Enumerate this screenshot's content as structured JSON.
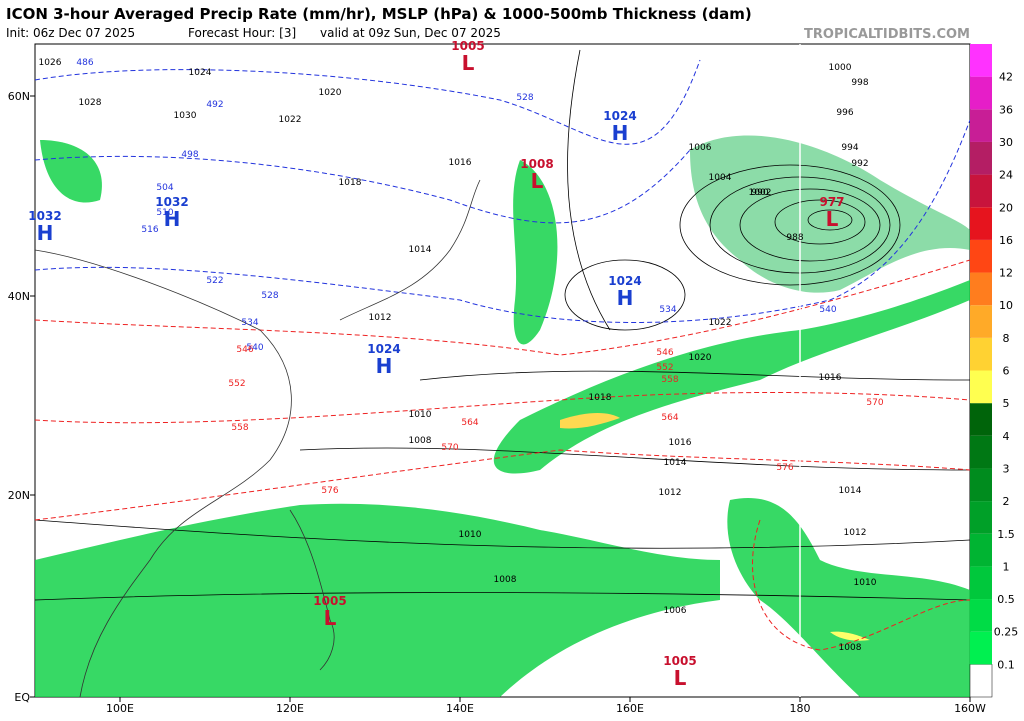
{
  "header": {
    "title": "ICON 3-hour Averaged Precip Rate (mm/hr), MSLP (hPa) & 1000-500mb Thickness (dam)",
    "init": "Init: 06z Dec 07 2025",
    "forecast_hour": "Forecast Hour: [3]",
    "valid": "valid at 09z Sun, Dec 07 2025",
    "watermark": "TROPICALTIDBITS.COM"
  },
  "lat_labels": [
    "60N",
    "40N",
    "20N",
    "EQ"
  ],
  "lon_labels": [
    "100E",
    "120E",
    "140E",
    "160E",
    "180",
    "160W"
  ],
  "colorbar": {
    "labels": [
      "0.1",
      "0.25",
      "0.5",
      "1",
      "1.5",
      "2",
      "3",
      "4",
      "5",
      "6",
      "8",
      "10",
      "12",
      "16",
      "20",
      "24",
      "30",
      "36",
      "42"
    ],
    "colors": [
      "#00f050",
      "#00dc46",
      "#00c83c",
      "#00b432",
      "#00a028",
      "#008c1e",
      "#007814",
      "#00640a",
      "#ffff50",
      "#ffd232",
      "#ffaa28",
      "#ff7d1e",
      "#ff4614",
      "#e6141e",
      "#c8143c",
      "#b41e64",
      "#c81e96",
      "#e61ec8",
      "#ff32ff"
    ]
  },
  "pressure_centers": [
    {
      "letter": "L",
      "value": "1005"
    },
    {
      "letter": "H",
      "value": "1024"
    },
    {
      "letter": "L",
      "value": "1008"
    },
    {
      "letter": "H",
      "value": "1032"
    },
    {
      "letter": "H",
      "value": "1032"
    },
    {
      "letter": "H",
      "value": "1024"
    },
    {
      "letter": "H",
      "value": "1024"
    },
    {
      "letter": "L",
      "value": "977"
    },
    {
      "letter": "L",
      "value": "1005"
    },
    {
      "letter": "L",
      "value": "1005"
    }
  ],
  "isobar_labels": [
    "1026",
    "1028",
    "1030",
    "1024",
    "1022",
    "1020",
    "1018",
    "1016",
    "1014",
    "1012",
    "1010",
    "1008",
    "1006",
    "1004",
    "1002",
    "1000",
    "998",
    "996",
    "994",
    "992",
    "990",
    "988",
    "1016",
    "1014",
    "1012",
    "1010",
    "1008",
    "1018",
    "1020",
    "1022",
    "1016",
    "1014",
    "1012",
    "1010",
    "1008",
    "1006"
  ],
  "thickness_labels": [
    "486",
    "492",
    "498",
    "504",
    "510",
    "516",
    "522",
    "528",
    "534",
    "540",
    "546",
    "552",
    "558",
    "564",
    "570",
    "576",
    "528",
    "534",
    "540",
    "546",
    "552",
    "558",
    "564",
    "570",
    "576"
  ]
}
